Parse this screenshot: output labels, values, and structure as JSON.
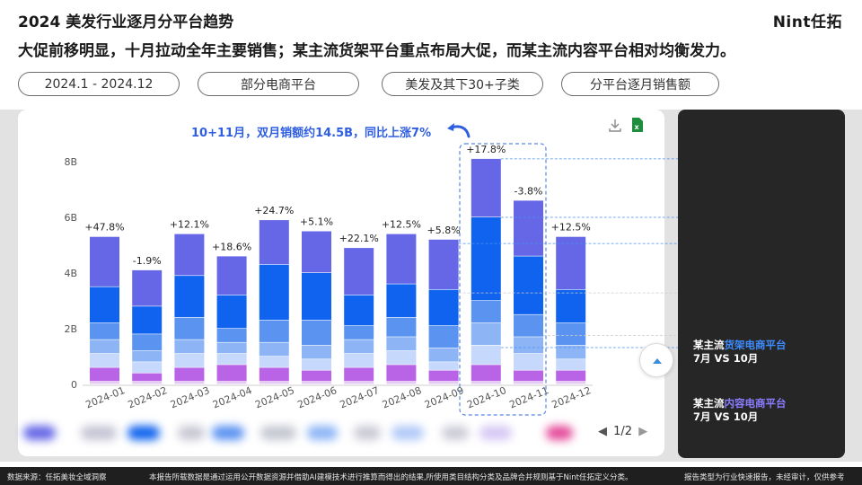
{
  "header": {
    "title": "2024 美发行业逐月分平台趋势",
    "brand": "Nint任拓",
    "subtitle": "大促前移明显，十月拉动全年主要销售；某主流货架平台重点布局大促，而某主流内容平台相对均衡发力。"
  },
  "filters": [
    {
      "label": "2024.1 - 2024.12"
    },
    {
      "label": "部分电商平台"
    },
    {
      "label": "美发及其下30+子类"
    },
    {
      "label": "分平台逐月销售额"
    }
  ],
  "annotation": "10+11月，双月销额约14.5B，同比上涨7%",
  "pager": "1/2",
  "side_panel": {
    "item1_prefix": "某主流",
    "item1_highlight": "货架电商平台",
    "item1_line2": "7月 VS 10月",
    "item2_prefix": "某主流",
    "item2_highlight": "内容电商平台",
    "item2_line2": "7月 VS 10月"
  },
  "footer": {
    "source": "数据来源：任拓美妆全域洞察",
    "note": "本报告所载数据是通过运用公开数据资源并借助AI建模技术进行推算而得出的结果,所使用类目结构分类及品牌合并规则基于Nint任拓定义分类。",
    "disclaimer": "报告类型为行业快速报告，未经审计，仅供参考"
  },
  "colors": {
    "seg1": "#6567e6",
    "seg2": "#0f63ee",
    "seg3": "#5b93f1",
    "seg4": "#8db5f6",
    "seg5": "#c6d8fb",
    "seg6": "#b964e6",
    "seg7": "#e5cbf4",
    "annotation": "#2f5fe0",
    "accent_blue": "#3d8cff",
    "accent_purple": "#8a7cff"
  },
  "chart_data": {
    "type": "bar",
    "stacked": true,
    "categories": [
      "2024-01",
      "2024-02",
      "2024-03",
      "2024-04",
      "2024-05",
      "2024-06",
      "2024-07",
      "2024-08",
      "2024-09",
      "2024-10",
      "2024-11",
      "2024-12"
    ],
    "y_ticks": [
      "0",
      "2B",
      "4B",
      "6B",
      "8B"
    ],
    "ylim": [
      0,
      8
    ],
    "yoy_labels": [
      "+47.8%",
      "-1.9%",
      "+12.1%",
      "+18.6%",
      "+24.7%",
      "+5.1%",
      "+22.1%",
      "+12.5%",
      "+5.8%",
      "+17.8%",
      "-3.8%",
      "+12.5%"
    ],
    "series": [
      {
        "values": [
          0.1,
          0.1,
          0.1,
          0.1,
          0.1,
          0.1,
          0.1,
          0.1,
          0.1,
          0.1,
          0.1,
          0.1
        ]
      },
      {
        "values": [
          0.5,
          0.3,
          0.5,
          0.6,
          0.5,
          0.4,
          0.5,
          0.6,
          0.4,
          0.6,
          0.4,
          0.4
        ]
      },
      {
        "values": [
          0.5,
          0.4,
          0.5,
          0.4,
          0.4,
          0.4,
          0.5,
          0.5,
          0.3,
          0.7,
          0.6,
          0.4
        ]
      },
      {
        "values": [
          0.5,
          0.4,
          0.5,
          0.4,
          0.5,
          0.5,
          0.5,
          0.5,
          0.5,
          0.8,
          0.6,
          0.5
        ]
      },
      {
        "values": [
          0.6,
          0.6,
          0.8,
          0.5,
          0.8,
          0.9,
          0.5,
          0.7,
          0.8,
          0.8,
          0.8,
          0.8
        ]
      },
      {
        "values": [
          1.3,
          1.0,
          1.5,
          1.2,
          2.0,
          1.7,
          1.1,
          1.2,
          1.3,
          3.0,
          2.1,
          1.2
        ]
      },
      {
        "values": [
          1.8,
          1.3,
          1.5,
          1.4,
          1.6,
          1.5,
          1.7,
          1.8,
          1.8,
          2.1,
          2.0,
          1.9
        ]
      }
    ]
  }
}
